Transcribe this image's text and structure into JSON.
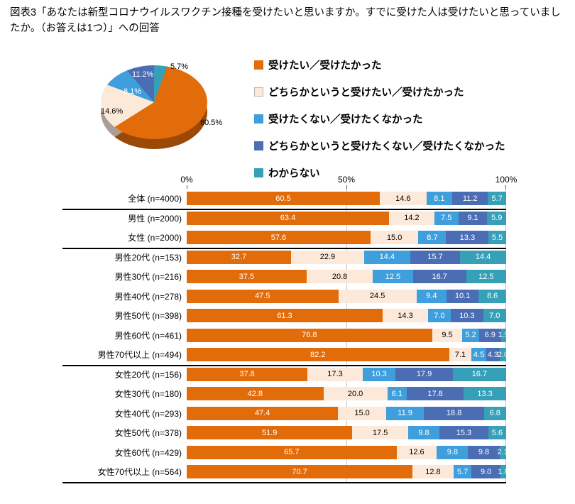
{
  "title": "図表3「あなたは新型コロナウイルスワクチン接種を受けたいと思いますか。すでに受けた人は受けたいと思っていましたか。（お答えは1つ）」への回答",
  "colors": {
    "want": "#E36C0A",
    "somewhat_want": "#FDE9D9",
    "not_want": "#3F9FDC",
    "somewhat_not_want": "#4A6DB4",
    "unknown": "#35A0B8"
  },
  "legend": {
    "items": [
      {
        "label": "受けたい／受けたかった",
        "color": "#E36C0A"
      },
      {
        "label": "どちらかというと受けたい／受けたかった",
        "color": "#FDE9D9"
      },
      {
        "label": "受けたくない／受けたくなかった",
        "color": "#3F9FDC"
      },
      {
        "label": "どちらかというと受けたくない／受けたくなかった",
        "color": "#4A6DB4"
      },
      {
        "label": "わからない",
        "color": "#35A0B8"
      }
    ]
  },
  "axis_ticks": [
    "0%",
    "50%",
    "100%"
  ],
  "chart_data": [
    {
      "type": "pie",
      "labels": [
        "受けたい／受けたかった",
        "どちらかというと受けたい／受けたかった",
        "受けたくない／受けたくなかった",
        "どちらかというと受けたくない／受けたくなかった",
        "わからない"
      ],
      "values": [
        60.5,
        14.6,
        8.1,
        11.2,
        5.7
      ],
      "value_labels": [
        "60.5%",
        "14.6%",
        "8.1%",
        "11.2%",
        "5.7%"
      ],
      "colors": [
        "#E36C0A",
        "#FDE9D9",
        "#3F9FDC",
        "#4A6DB4",
        "#35A0B8"
      ],
      "start_angle_deg": 20,
      "style": "3d"
    },
    {
      "type": "bar",
      "stacked": true,
      "orientation": "horizontal",
      "xlim": [
        0,
        100
      ],
      "x_ticks": [
        "0%",
        "50%",
        "100%"
      ],
      "categories": [
        "全体  (n=4000)",
        "男性 (n=2000)",
        "女性 (n=2000)",
        "男性20代 (n=153)",
        "男性30代 (n=216)",
        "男性40代 (n=278)",
        "男性50代 (n=398)",
        "男性60代 (n=461)",
        "男性70代以上 (n=494)",
        "女性20代 (n=156)",
        "女性30代 (n=180)",
        "女性40代 (n=293)",
        "女性50代 (n=378)",
        "女性60代 (n=429)",
        "女性70代以上 (n=564)"
      ],
      "groups": [
        "total",
        "gender",
        "gender",
        "male",
        "male",
        "male",
        "male",
        "male",
        "male",
        "female",
        "female",
        "female",
        "female",
        "female",
        "female"
      ],
      "series": [
        {
          "name": "受けたい／受けたかった",
          "color": "#E36C0A",
          "values": [
            60.5,
            63.4,
            57.6,
            32.7,
            37.5,
            47.5,
            61.3,
            76.8,
            82.2,
            37.8,
            42.8,
            47.4,
            51.9,
            65.7,
            70.7
          ]
        },
        {
          "name": "どちらかというと受けたい／受けたかった",
          "color": "#FDE9D9",
          "values": [
            14.6,
            14.2,
            15.0,
            22.9,
            20.8,
            24.5,
            14.3,
            9.5,
            7.1,
            17.3,
            20.0,
            15.0,
            17.5,
            12.6,
            12.8
          ]
        },
        {
          "name": "受けたくない／受けたくなかった",
          "color": "#3F9FDC",
          "values": [
            8.1,
            7.5,
            8.7,
            14.4,
            12.5,
            9.4,
            7.0,
            5.2,
            4.5,
            10.3,
            6.1,
            11.9,
            9.8,
            9.8,
            5.7
          ]
        },
        {
          "name": "どちらかというと受けたくない／受けたくなかった",
          "color": "#4A6DB4",
          "values": [
            11.2,
            9.1,
            13.3,
            15.7,
            16.7,
            10.1,
            10.3,
            6.9,
            4.3,
            17.9,
            17.8,
            18.8,
            15.3,
            9.8,
            9.0
          ]
        },
        {
          "name": "わからない",
          "color": "#35A0B8",
          "values": [
            5.7,
            5.9,
            5.5,
            14.4,
            12.5,
            8.6,
            7.0,
            1.5,
            2.0,
            16.7,
            13.3,
            6.8,
            5.6,
            2.1,
            1.8
          ]
        }
      ]
    }
  ]
}
